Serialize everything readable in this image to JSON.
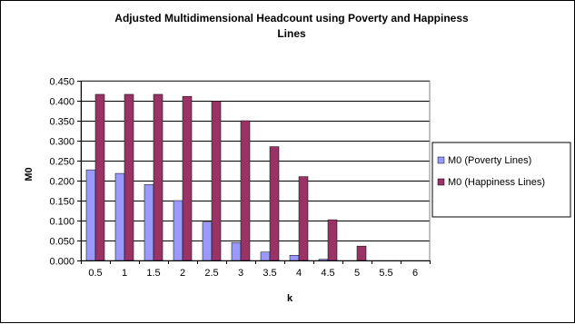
{
  "chart_data": {
    "type": "bar",
    "title": "Adjusted Multidimensional Headcount using Poverty and Happiness",
    "title_line2": "Lines",
    "xlabel": "k",
    "ylabel": "M0",
    "categories": [
      "0.5",
      "1",
      "1.5",
      "2",
      "2.5",
      "3",
      "3.5",
      "4",
      "4.5",
      "5",
      "5.5",
      "6"
    ],
    "yticks": [
      "0.000",
      "0.050",
      "0.100",
      "0.150",
      "0.200",
      "0.250",
      "0.300",
      "0.350",
      "0.400",
      "0.450"
    ],
    "ylim": [
      0,
      0.45
    ],
    "grid": true,
    "legend_position": "right",
    "series": [
      {
        "name": "M0 (Poverty Lines)",
        "color": "#9999ff",
        "values": [
          0.227,
          0.218,
          0.19,
          0.15,
          0.096,
          0.045,
          0.021,
          0.013,
          0.003,
          0,
          0,
          0
        ]
      },
      {
        "name": "M0 (Happiness Lines)",
        "color": "#993366",
        "values": [
          0.416,
          0.416,
          0.416,
          0.411,
          0.399,
          0.35,
          0.285,
          0.21,
          0.102,
          0.036,
          0,
          0
        ]
      }
    ]
  }
}
